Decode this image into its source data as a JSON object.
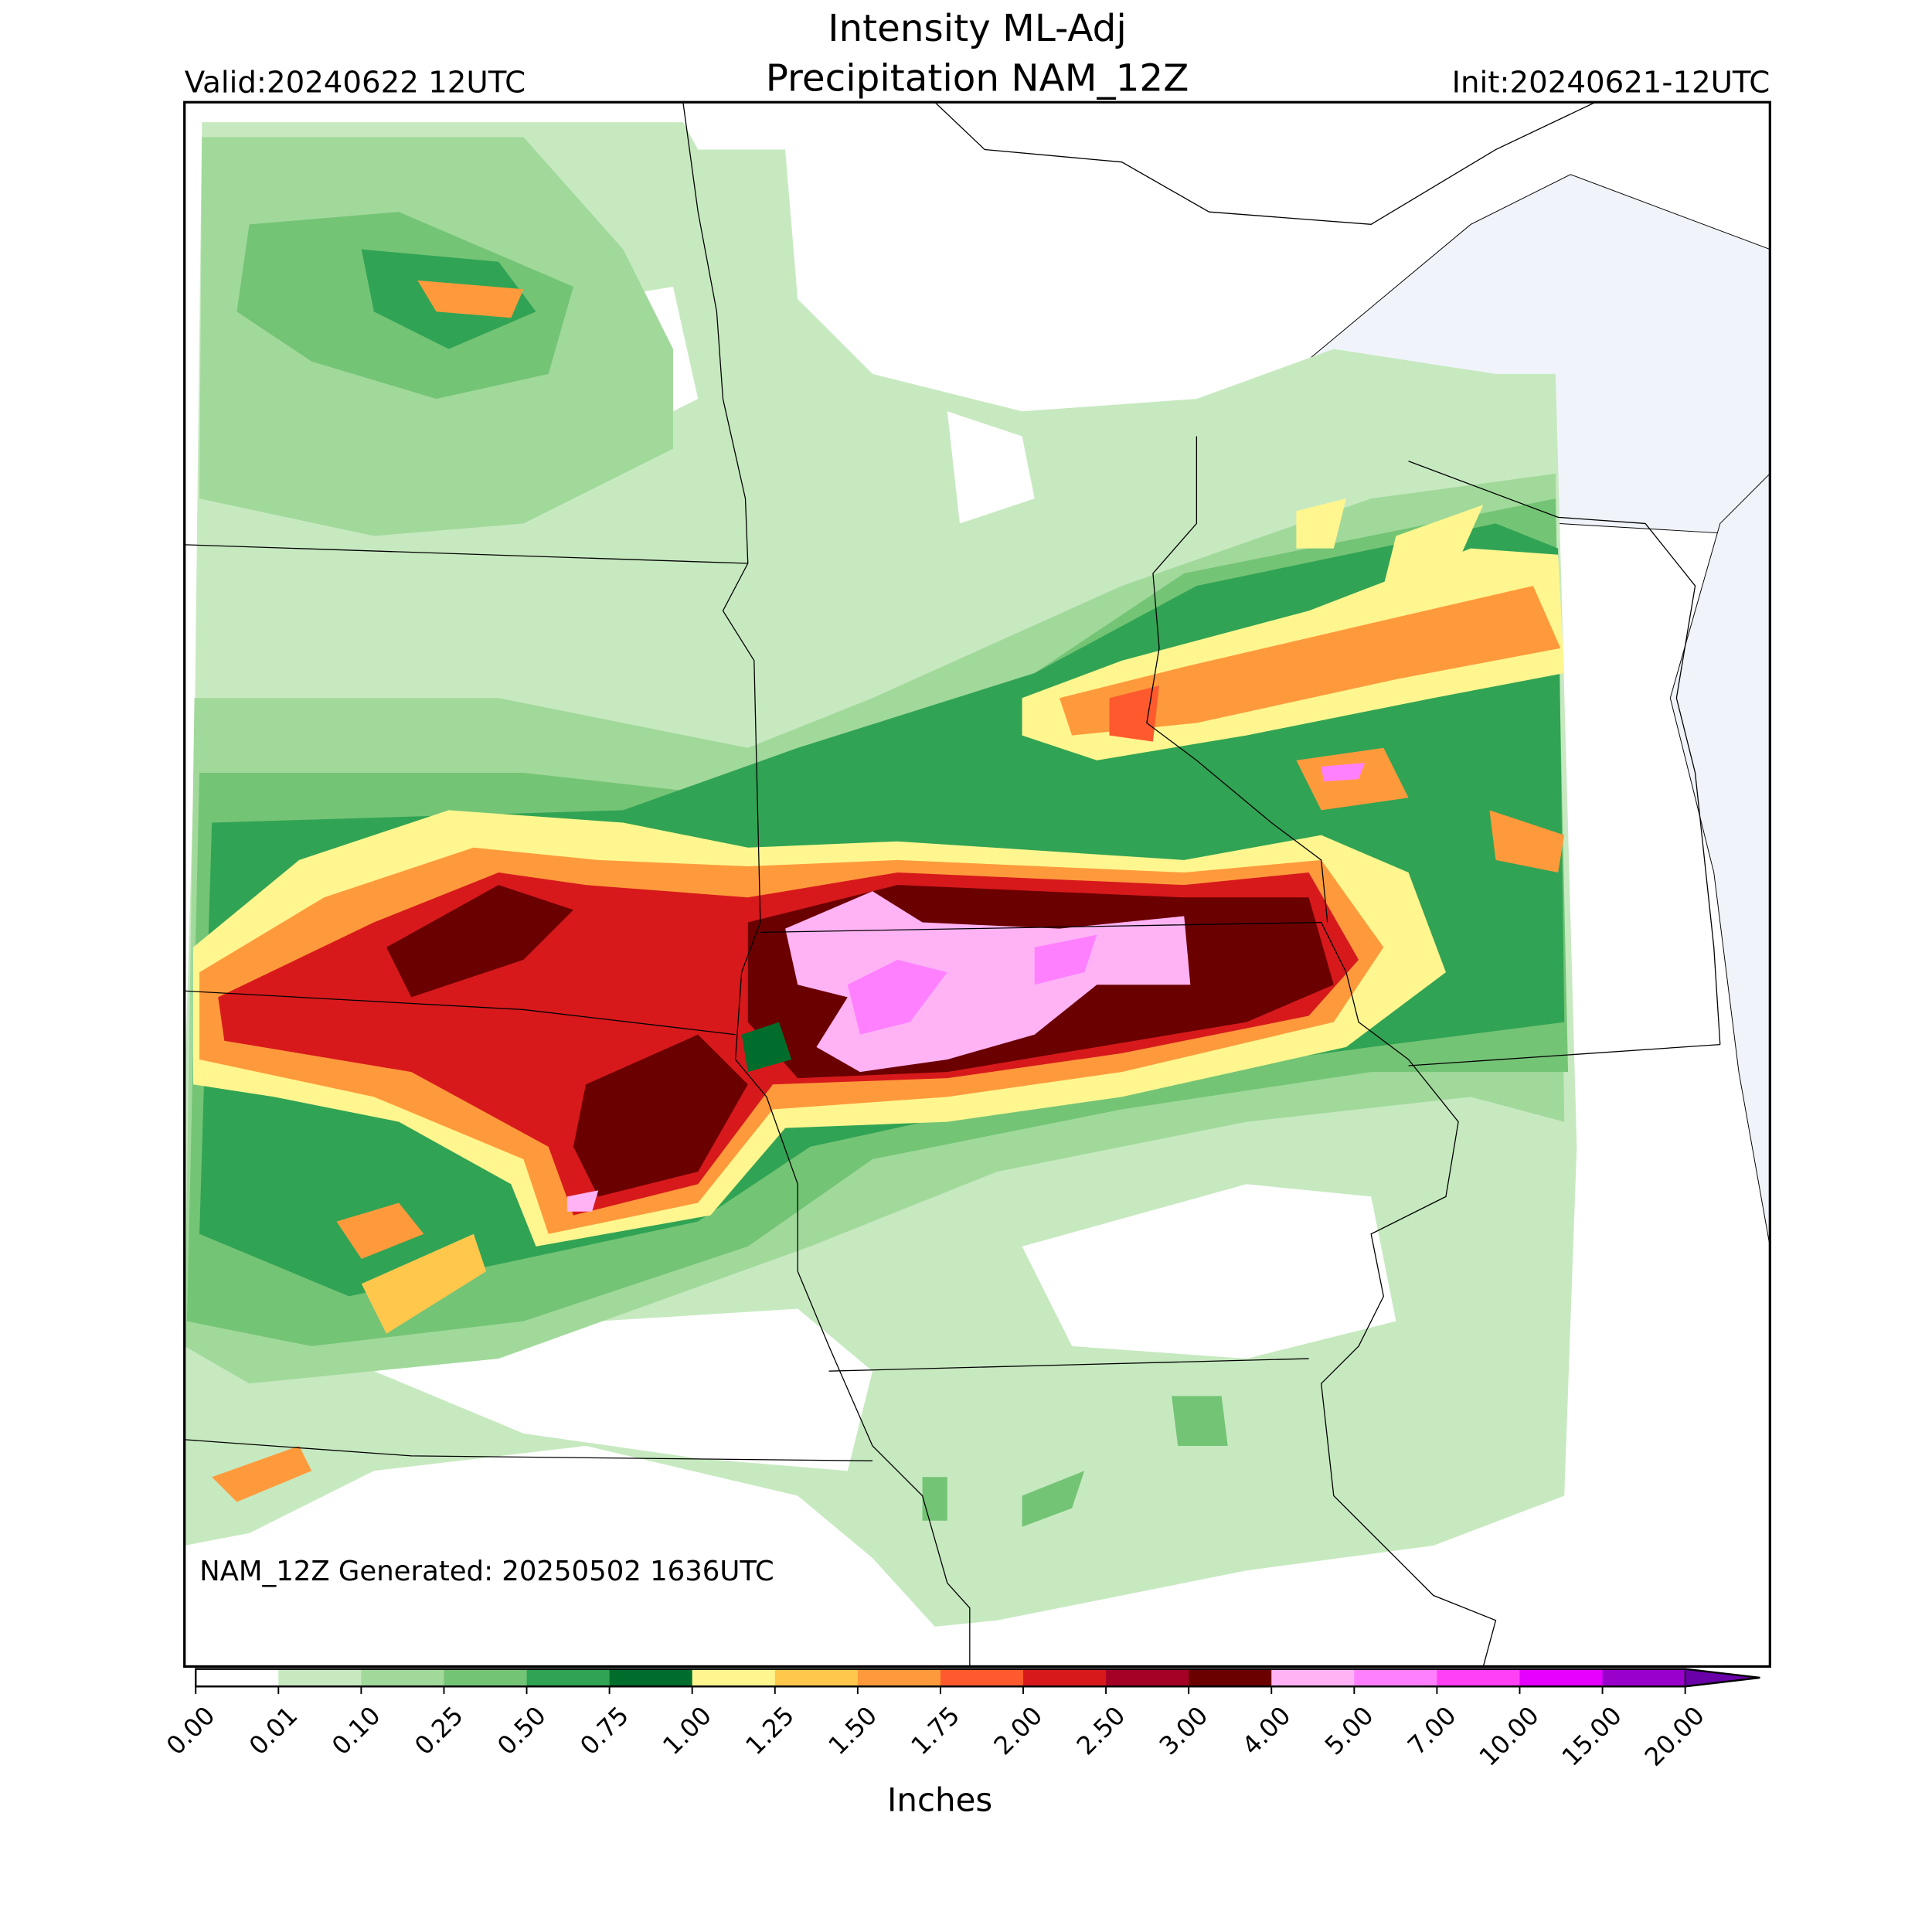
{
  "header": {
    "title_line1": "Intensity ML-Adj",
    "title_line2": "Precipitation NAM_12Z",
    "valid": "Valid:20240622 12UTC",
    "init": "Init:20240621-12UTC"
  },
  "map": {
    "generated": "NAM_12Z Generated: 20250502 1636UTC"
  },
  "colorbar": {
    "label": "Inches",
    "ticks": [
      {
        "value": 0,
        "label": "0.00"
      },
      {
        "value": 0.01,
        "label": "0.01"
      },
      {
        "value": 0.1,
        "label": "0.10"
      },
      {
        "value": 0.25,
        "label": "0.25"
      },
      {
        "value": 0.5,
        "label": "0.50"
      },
      {
        "value": 0.75,
        "label": "0.75"
      },
      {
        "value": 1,
        "label": "1.00"
      },
      {
        "value": 1.25,
        "label": "1.25"
      },
      {
        "value": 1.5,
        "label": "1.50"
      },
      {
        "value": 1.75,
        "label": "1.75"
      },
      {
        "value": 2,
        "label": "2.00"
      },
      {
        "value": 2.5,
        "label": "2.50"
      },
      {
        "value": 3,
        "label": "3.00"
      },
      {
        "value": 4,
        "label": "4.00"
      },
      {
        "value": 5,
        "label": "5.00"
      },
      {
        "value": 7,
        "label": "7.00"
      },
      {
        "value": 10,
        "label": "10.00"
      },
      {
        "value": 15,
        "label": "15.00"
      },
      {
        "value": 20,
        "label": "20.00"
      }
    ],
    "colors": [
      "#ffffff",
      "#c7e9c0",
      "#a1d99b",
      "#74c476",
      "#31a354",
      "#006d2c",
      "#fff68f",
      "#ffc84d",
      "#ff9a3c",
      "#ff5a2e",
      "#d7191c",
      "#a50026",
      "#6b0000",
      "#ffb3f5",
      "#ff80ff",
      "#ff40f5",
      "#e600ff",
      "#9900cc"
    ],
    "over_color": "#6a00a8"
  }
}
